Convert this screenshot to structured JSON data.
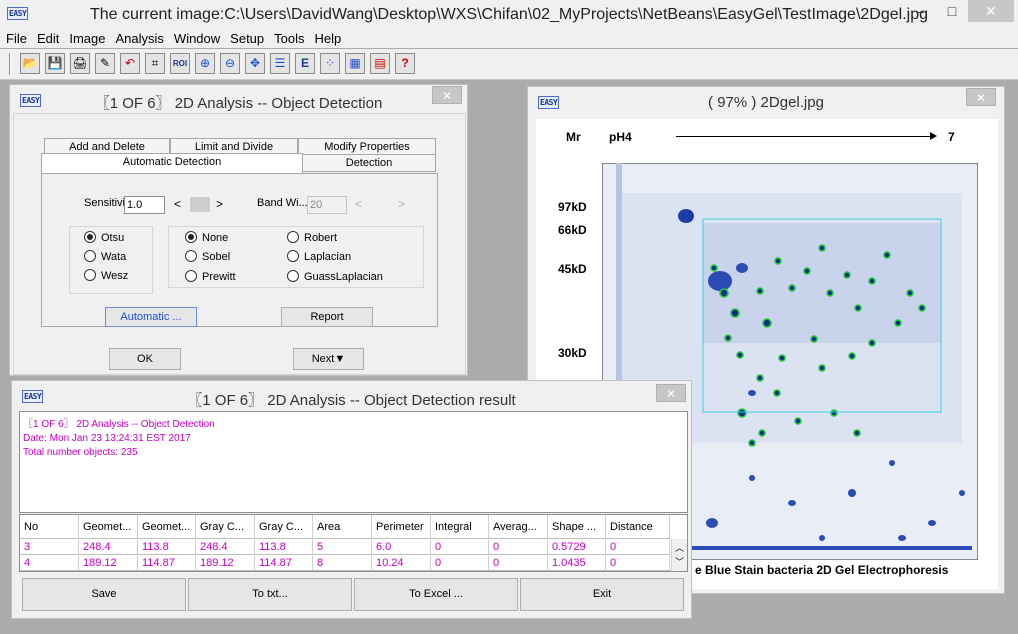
{
  "app_icon_text": "EASY",
  "window_title": "The current image:C:\\Users\\DavidWang\\Desktop\\WXS\\Chifan\\02_MyProjects\\NetBeans\\EasyGel\\TestImage\\2Dgel.jpg",
  "window_controls": {
    "minimize": "–",
    "maximize": "□",
    "close": "✕"
  },
  "menu": [
    "File",
    "Edit",
    "Image",
    "Analysis",
    "Window",
    "Setup",
    "Tools",
    "Help"
  ],
  "toolbar_icons": [
    "open-icon",
    "save-icon",
    "print-icon",
    "edit-icon",
    "undo-icon",
    "crop-icon",
    "roi-icon",
    "zoom-in-icon",
    "zoom-out-icon",
    "move-icon",
    "list-icon",
    "easy-icon",
    "spots-icon",
    "grid-icon",
    "table-icon",
    "help-icon"
  ],
  "toolbar_glyphs": [
    "📂",
    "💾",
    "🖨",
    "✎",
    "↶",
    "⌗",
    "ROI",
    "⊕",
    "⊖",
    "✥",
    "☰",
    "E",
    "⁘",
    "▦",
    "▤",
    "?"
  ],
  "detection": {
    "title": "〖1 OF 6〗 2D Analysis -- Object Detection",
    "close_label": "✕",
    "tabs_back": [
      "Add and Delete",
      "Limit and Divide",
      "Modify Properties"
    ],
    "tabs_front": [
      "Automatic Detection",
      "Detection"
    ],
    "sensitivity_label": "Sensitivity",
    "sensitivity_value": "1.0",
    "band_width_label": "Band Wi...",
    "band_width_value": "20",
    "arrow_left": "<",
    "arrow_right": ">",
    "method_options": [
      "Otsu",
      "Wata",
      "Wesz"
    ],
    "filter_options_col1": [
      "None",
      "Sobel",
      "Prewitt"
    ],
    "filter_options_col2": [
      "Robert",
      "Laplacian",
      "GuassLaplacian"
    ],
    "automatic_button": "Automatic ...",
    "report_button": "Report",
    "ok_button": "OK",
    "next_button": "Next▼"
  },
  "image_window": {
    "title": "( 97% ) 2Dgel.jpg",
    "close_label": "✕",
    "header_mr": "Mr",
    "header_ph": "pH4",
    "header_end": "7",
    "mw_labels": [
      "97kD",
      "66kD",
      "45kD",
      "30kD"
    ],
    "caption": "e Blue Stain bacteria 2D Gel Electrophoresis"
  },
  "result": {
    "title": "〖1 OF 6〗 2D Analysis -- Object Detection result",
    "close_label": "✕",
    "log_lines": [
      "〖1 OF 6〗 2D Analysis -- Object Detection",
      "Date: Mon Jan 23 13:24:31 EST 2017",
      "Total number objects: 235"
    ],
    "columns": [
      "No",
      "Geomet...",
      "Geomet...",
      "Gray C...",
      "Gray C...",
      "Area",
      "Perimeter",
      "Integral",
      "Averag...",
      "Shape ...",
      "Distance"
    ],
    "rows": [
      [
        "3",
        "248.4",
        "113.8",
        "248.4",
        "113.8",
        "5",
        "6.0",
        "0",
        "0",
        "0.5729",
        "0"
      ],
      [
        "4",
        "189.12",
        "114.87",
        "189.12",
        "114.87",
        "8",
        "10.24",
        "0",
        "0",
        "1.0435",
        "0"
      ]
    ],
    "buttons": [
      "Save",
      "To txt...",
      "To Excel ...",
      "Exit"
    ]
  }
}
